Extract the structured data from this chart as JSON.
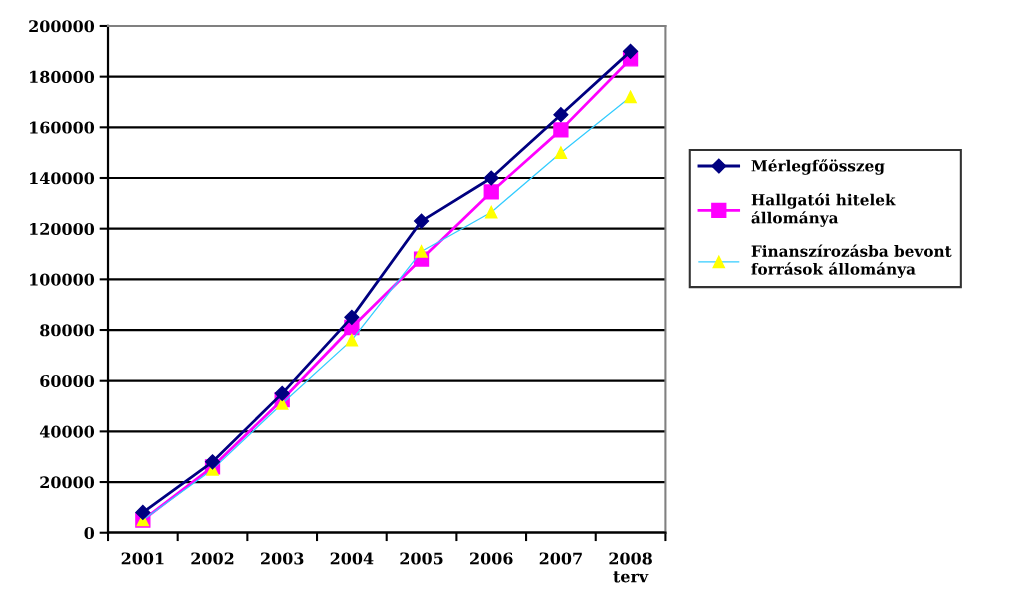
{
  "chart_data": {
    "type": "line",
    "categories": [
      "2001",
      "2002",
      "2003",
      "2004",
      "2005",
      "2006",
      "2007",
      "2008 terv"
    ],
    "series": [
      {
        "name": "Mérlegfőösszeg",
        "color": "#000080",
        "marker": "diamond",
        "values": [
          8000,
          28000,
          55000,
          85000,
          123000,
          140000,
          165000,
          190000
        ]
      },
      {
        "name": "Hallgatói hitelek állománya",
        "color": "#ff00ff",
        "marker": "square",
        "values": [
          5000,
          26000,
          52500,
          81000,
          108000,
          134500,
          159000,
          187000
        ]
      },
      {
        "name": "Finanszírozásba bevont források állománya",
        "color": "#33ccff",
        "marker": "triangle",
        "values": [
          5000,
          25000,
          51000,
          76000,
          111000,
          126500,
          150000,
          172000
        ]
      }
    ],
    "ylim": [
      0,
      200000
    ],
    "yticks": [
      0,
      20000,
      40000,
      60000,
      80000,
      100000,
      120000,
      140000,
      160000,
      180000,
      200000
    ],
    "grid": "y",
    "legend": "right",
    "line_style": "solid"
  }
}
